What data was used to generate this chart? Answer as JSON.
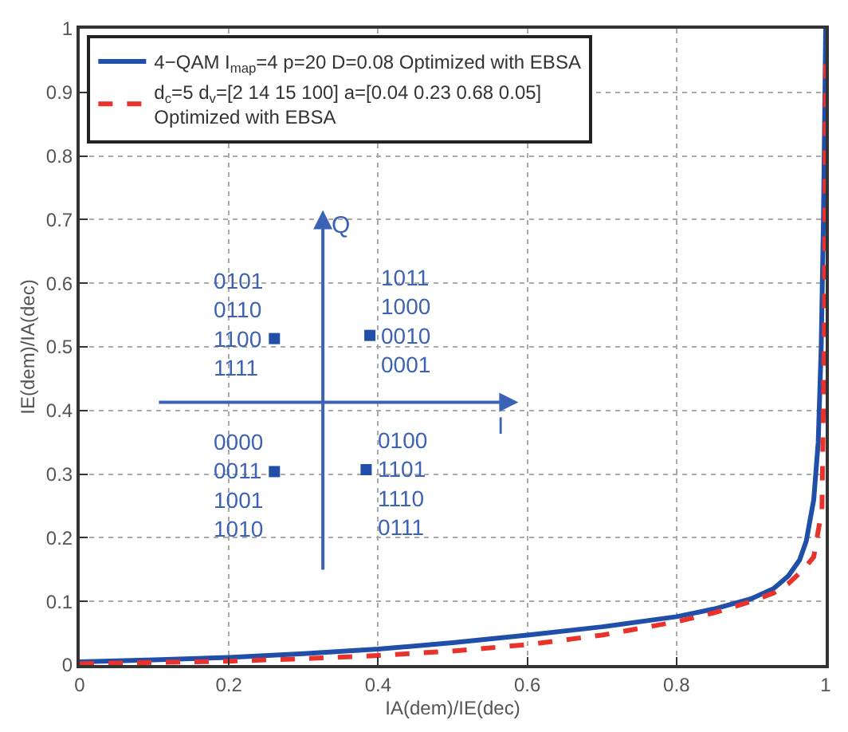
{
  "chart_data": {
    "type": "line",
    "xlabel": "IA(dem)/IE(dec)",
    "ylabel": "IE(dem)/IA(dec)",
    "xlim": [
      0,
      1
    ],
    "ylim": [
      0,
      1
    ],
    "xticks": [
      0,
      0.2,
      0.4,
      0.6,
      0.8,
      1
    ],
    "yticks": [
      0,
      0.1,
      0.2,
      0.3,
      0.4,
      0.5,
      0.6,
      0.7,
      0.8,
      0.9,
      1
    ],
    "grid": true,
    "legend": "top left",
    "series": [
      {
        "name": "4−QAM I$_{map}$=4 p=20 D=0.08 Optimized with EBSA",
        "color": "#1f4fa8",
        "line_style": "solid",
        "x": [
          0,
          0.1,
          0.2,
          0.3,
          0.4,
          0.5,
          0.6,
          0.7,
          0.8,
          0.85,
          0.9,
          0.93,
          0.95,
          0.965,
          0.974,
          0.984,
          0.99,
          0.994,
          0.997,
          1
        ],
        "values": [
          0.005,
          0.008,
          0.012,
          0.018,
          0.025,
          0.035,
          0.047,
          0.06,
          0.076,
          0.088,
          0.104,
          0.12,
          0.14,
          0.165,
          0.195,
          0.26,
          0.35,
          0.5,
          0.7,
          1
        ]
      },
      {
        "name": "d$_{c}$=5 d$_{v}$=[2 14 15 100] a=[0.04 0.23 0.68 0.05]\nOptimized with EBSA",
        "color": "#e8322b",
        "line_style": "dashed",
        "x": [
          0,
          0.1,
          0.2,
          0.3,
          0.4,
          0.5,
          0.6,
          0.7,
          0.8,
          0.85,
          0.9,
          0.93,
          0.95,
          0.97,
          0.984,
          0.995,
          0.998,
          1
        ],
        "values": [
          0.002,
          0.004,
          0.006,
          0.01,
          0.015,
          0.022,
          0.032,
          0.047,
          0.068,
          0.082,
          0.1,
          0.113,
          0.128,
          0.15,
          0.17,
          0.245,
          0.5,
          0.95
        ]
      },
      {
        "type": "scatter",
        "marker": "square",
        "color": "#1f4fa8",
        "x": [
          0.261,
          0.389,
          0.261,
          0.384
        ],
        "values": [
          0.513,
          0.518,
          0.304,
          0.307
        ]
      }
    ],
    "annotations": [
      {
        "text": "0101\n0110\n1100\n1111",
        "x": 0.261,
        "y": 0.513
      },
      {
        "text": "1011\n1000\n0010\n0001",
        "x": 0.389,
        "y": 0.518
      },
      {
        "text": "0000\n0011\n1001\n1010",
        "x": 0.261,
        "y": 0.304
      },
      {
        "text": "0100\n1101\n1110\n0111",
        "x": 0.384,
        "y": 0.307
      },
      "Q",
      "I"
    ]
  }
}
